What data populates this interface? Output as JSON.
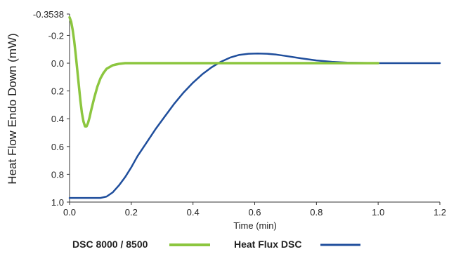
{
  "chart_data": {
    "type": "line",
    "title": "",
    "xlabel": "Time (min)",
    "ylabel": "Heat Flow Endo Down (mW)",
    "xlim": [
      0.0,
      1.2
    ],
    "ylim": [
      -0.3538,
      1.0
    ],
    "y_inverted": true,
    "grid": false,
    "legend_position": "bottom",
    "x_ticks": [
      {
        "value": 0.0,
        "label": "0.0"
      },
      {
        "value": 0.2,
        "label": "0.2"
      },
      {
        "value": 0.4,
        "label": "0.4"
      },
      {
        "value": 0.6,
        "label": "0.6"
      },
      {
        "value": 0.8,
        "label": "0.8"
      },
      {
        "value": 1.0,
        "label": "1.0"
      },
      {
        "value": 1.2,
        "label": "1.2"
      }
    ],
    "y_ticks": [
      {
        "value": -0.3538,
        "label": "-0.3538"
      },
      {
        "value": -0.2,
        "label": "-0.2"
      },
      {
        "value": 0.0,
        "label": "0.0"
      },
      {
        "value": 0.2,
        "label": "0.2"
      },
      {
        "value": 0.4,
        "label": "0.4"
      },
      {
        "value": 0.6,
        "label": "0.6"
      },
      {
        "value": 0.8,
        "label": "0.8"
      },
      {
        "value": 1.0,
        "label": "1.0"
      }
    ],
    "series": [
      {
        "name": "DSC 8000 / 8500",
        "color": "#8cc63f",
        "points": [
          [
            0.0,
            -0.33
          ],
          [
            0.005,
            -0.3
          ],
          [
            0.01,
            -0.24
          ],
          [
            0.015,
            -0.16
          ],
          [
            0.02,
            -0.06
          ],
          [
            0.025,
            0.05
          ],
          [
            0.03,
            0.16
          ],
          [
            0.035,
            0.27
          ],
          [
            0.04,
            0.36
          ],
          [
            0.045,
            0.42
          ],
          [
            0.05,
            0.455
          ],
          [
            0.055,
            0.455
          ],
          [
            0.06,
            0.43
          ],
          [
            0.065,
            0.39
          ],
          [
            0.07,
            0.34
          ],
          [
            0.08,
            0.25
          ],
          [
            0.09,
            0.17
          ],
          [
            0.1,
            0.11
          ],
          [
            0.11,
            0.07
          ],
          [
            0.12,
            0.04
          ],
          [
            0.14,
            0.015
          ],
          [
            0.16,
            0.005
          ],
          [
            0.18,
            0.0
          ],
          [
            0.2,
            0.0
          ],
          [
            0.4,
            0.0
          ],
          [
            0.6,
            0.0
          ],
          [
            0.8,
            0.0
          ],
          [
            1.0,
            0.0
          ]
        ]
      },
      {
        "name": "Heat Flux DSC",
        "color": "#1f4e9c",
        "points": [
          [
            0.0,
            0.97
          ],
          [
            0.05,
            0.97
          ],
          [
            0.1,
            0.97
          ],
          [
            0.12,
            0.96
          ],
          [
            0.14,
            0.93
          ],
          [
            0.16,
            0.88
          ],
          [
            0.18,
            0.82
          ],
          [
            0.2,
            0.75
          ],
          [
            0.22,
            0.67
          ],
          [
            0.25,
            0.57
          ],
          [
            0.28,
            0.47
          ],
          [
            0.31,
            0.38
          ],
          [
            0.34,
            0.29
          ],
          [
            0.37,
            0.21
          ],
          [
            0.4,
            0.14
          ],
          [
            0.43,
            0.08
          ],
          [
            0.46,
            0.03
          ],
          [
            0.49,
            -0.01
          ],
          [
            0.52,
            -0.04
          ],
          [
            0.55,
            -0.06
          ],
          [
            0.58,
            -0.068
          ],
          [
            0.61,
            -0.07
          ],
          [
            0.64,
            -0.068
          ],
          [
            0.67,
            -0.062
          ],
          [
            0.7,
            -0.052
          ],
          [
            0.75,
            -0.035
          ],
          [
            0.8,
            -0.02
          ],
          [
            0.85,
            -0.01
          ],
          [
            0.9,
            -0.004
          ],
          [
            1.0,
            0.0
          ],
          [
            1.1,
            0.0
          ],
          [
            1.2,
            0.0
          ]
        ]
      }
    ]
  }
}
